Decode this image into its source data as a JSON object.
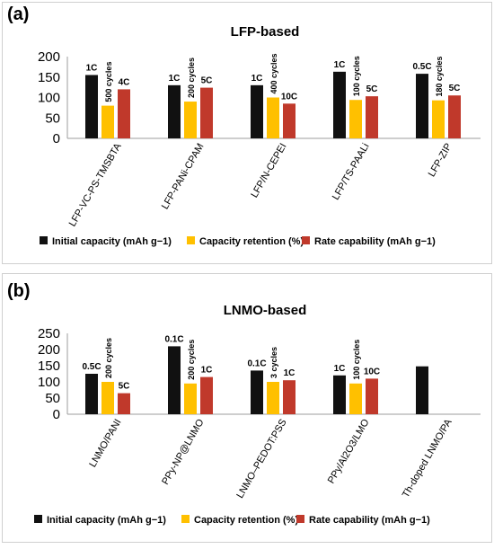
{
  "colors": {
    "initial": "#111111",
    "retention": "#FFC000",
    "rate": "#C0392B",
    "axis": "#9e9e9e"
  },
  "legend_labels": [
    "Initial capacity (mAh g−1)",
    "Capacity retention (%)",
    "Rate capability (mAh g−1)"
  ],
  "chart_data": [
    {
      "type": "bar",
      "panel_label": "(a)",
      "title": "LFP-based",
      "categories": [
        "LFP-VC-PS-TMSBTA",
        "LFP-PANi-CPAM",
        "LFP/N-CEPEI",
        "LFP/TS-PAALi",
        "LFP-ZIP"
      ],
      "series": [
        {
          "name": "Initial capacity (mAh g−1)",
          "values": [
            155,
            130,
            130,
            163,
            158
          ]
        },
        {
          "name": "Capacity retention (%)",
          "values": [
            80,
            90,
            100,
            94,
            93
          ]
        },
        {
          "name": "Rate capability (mAh g−1)",
          "values": [
            120,
            124,
            85,
            103,
            105
          ]
        }
      ],
      "annotations": [
        {
          "initial": "1C",
          "retention": "500 cycles",
          "rate": "4C"
        },
        {
          "initial": "1C",
          "retention": "200 cycles",
          "rate": "5C"
        },
        {
          "initial": "1C",
          "retention": "400 cycles",
          "rate": "10C"
        },
        {
          "initial": "1C",
          "retention": "100 cycles",
          "rate": "5C"
        },
        {
          "initial": "0.5C",
          "retention": "180 cycles",
          "rate": "5C"
        }
      ],
      "ylim": [
        0,
        200
      ],
      "yticks": [
        0,
        50,
        100,
        150,
        200
      ],
      "legend": "bottom",
      "grid": false
    },
    {
      "type": "bar",
      "panel_label": "(b)",
      "title": "LNMO-based",
      "categories": [
        "LNMO/PANI",
        "PPy-NP@LNMO",
        "LNMO–PEDOT:PSS",
        "PPy/Al2O3/LMO",
        "Th-doped LNMO/PA"
      ],
      "series": [
        {
          "name": "Initial capacity (mAh g−1)",
          "values": [
            125,
            210,
            135,
            120,
            148
          ]
        },
        {
          "name": "Capacity retention (%)",
          "values": [
            100,
            95,
            100,
            95,
            null
          ]
        },
        {
          "name": "Rate capability (mAh g−1)",
          "values": [
            65,
            115,
            105,
            110,
            null
          ]
        }
      ],
      "annotations": [
        {
          "initial": "0.5C",
          "retention": "200 cycles",
          "rate": "5C"
        },
        {
          "initial": "0.1C",
          "retention": "200 cycles",
          "rate": "1C"
        },
        {
          "initial": "0.1C",
          "retention": "3 cycles",
          "rate": "1C"
        },
        {
          "initial": "1C",
          "retention": "100 cycles",
          "rate": "10C"
        },
        {
          "initial": "",
          "retention": "",
          "rate": ""
        }
      ],
      "ylim": [
        0,
        250
      ],
      "yticks": [
        0,
        50,
        100,
        150,
        200,
        250
      ],
      "legend": "bottom",
      "grid": false
    }
  ]
}
